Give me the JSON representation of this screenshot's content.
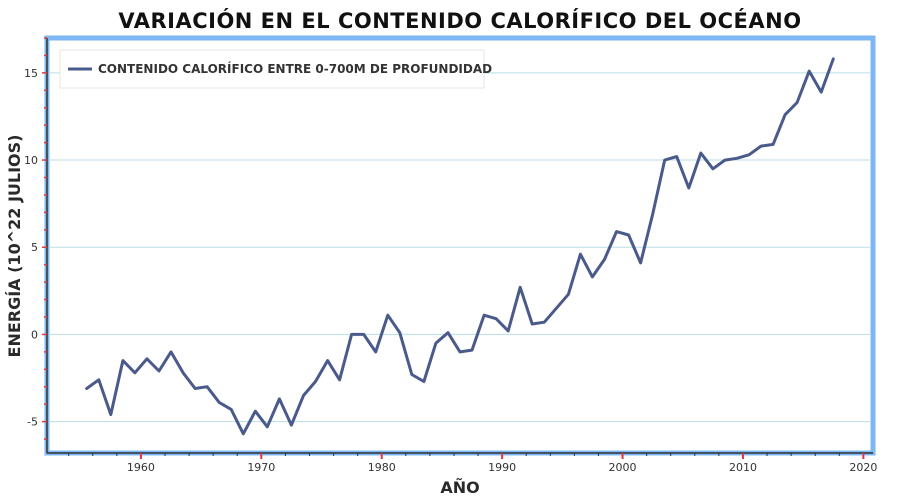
{
  "chart_data": {
    "type": "line",
    "title": "VARIACIÓN EN EL CONTENIDO CALORÍFICO DEL OCÉANO",
    "xlabel": "AÑO",
    "ylabel": "ENERGÍA (10^22 JULIOS)",
    "xlim": [
      1952.2,
      2020.8
    ],
    "ylim": [
      -6.8,
      17
    ],
    "xticks": [
      1960,
      1970,
      1980,
      1990,
      2000,
      2010,
      2020
    ],
    "yticks": [
      -5,
      0,
      5,
      10,
      15
    ],
    "grid": "horizontal",
    "legend_position": "top-left",
    "series": [
      {
        "name": "CONTENIDO CALORÍFICO ENTRE 0-700M DE PROFUNDIDAD",
        "color": "#4a5a8a",
        "x": [
          1955.5,
          1956.5,
          1957.5,
          1958.5,
          1959.5,
          1960.5,
          1961.5,
          1962.5,
          1963.5,
          1964.5,
          1965.5,
          1966.5,
          1967.5,
          1968.5,
          1969.5,
          1970.5,
          1971.5,
          1972.5,
          1973.5,
          1974.5,
          1975.5,
          1976.5,
          1977.5,
          1978.5,
          1979.5,
          1980.5,
          1981.5,
          1982.5,
          1983.5,
          1984.5,
          1985.5,
          1986.5,
          1987.5,
          1988.5,
          1989.5,
          1990.5,
          1991.5,
          1992.5,
          1993.5,
          1994.5,
          1995.5,
          1996.5,
          1997.5,
          1998.5,
          1999.5,
          2000.5,
          2001.5,
          2002.5,
          2003.5,
          2004.5,
          2005.5,
          2006.5,
          2007.5,
          2008.5,
          2009.5,
          2010.5,
          2011.5,
          2012.5,
          2013.5,
          2014.5,
          2015.5,
          2016.5,
          2017.5
        ],
        "y": [
          -3.1,
          -2.6,
          -4.6,
          -1.5,
          -2.2,
          -1.4,
          -2.1,
          -1.0,
          -2.2,
          -3.1,
          -3.0,
          -3.9,
          -4.3,
          -5.7,
          -4.4,
          -5.3,
          -3.7,
          -5.2,
          -3.5,
          -2.7,
          -1.5,
          -2.6,
          0.0,
          0.0,
          -1.0,
          1.1,
          0.1,
          -2.3,
          -2.7,
          -0.5,
          0.1,
          -1.0,
          -0.9,
          1.1,
          0.9,
          0.2,
          2.7,
          0.6,
          0.7,
          1.5,
          2.3,
          4.6,
          3.3,
          4.3,
          5.9,
          5.7,
          4.1,
          6.9,
          10.0,
          10.2,
          8.4,
          10.4,
          9.5,
          10.0,
          10.1,
          10.3,
          10.8,
          10.9,
          12.6,
          13.3,
          15.1,
          13.9,
          15.8
        ]
      }
    ]
  },
  "colors": {
    "frame": "#7db8f5",
    "tick_accent": "#e8343a",
    "grid": "#b8dde6",
    "axis": "#333333"
  }
}
